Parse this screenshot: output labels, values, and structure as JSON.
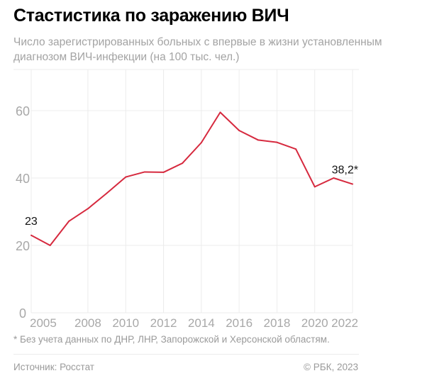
{
  "title": "Стастистика по заражению ВИЧ",
  "subtitle": "Число зарегистрированных больных с впервые в жизни установленным диагнозом ВИЧ-инфекции (на 100 тыс. чел.)",
  "footnote": "* Без учета данных по ДНР, ЛНР, Запорожской и Херсонской областям.",
  "source": "Источник: Росстат",
  "copyright": "© РБК, 2023",
  "chart_data": {
    "type": "line",
    "title": "Стастистика по заражению ВИЧ",
    "xlabel": "",
    "ylabel": "",
    "x": [
      2005,
      2006,
      2007,
      2008,
      2009,
      2010,
      2011,
      2012,
      2013,
      2014,
      2015,
      2016,
      2017,
      2018,
      2019,
      2020,
      2021,
      2022
    ],
    "series": [
      {
        "values": [
          23,
          20,
          27.2,
          30.9,
          35.5,
          40.3,
          41.8,
          41.7,
          44.4,
          50.5,
          59.5,
          54.1,
          51.3,
          50.6,
          48.6,
          37.4,
          40,
          38.2
        ],
        "color": "#d6293e"
      }
    ],
    "xticks": [
      "2005",
      "2008",
      "2010",
      "2012",
      "2014",
      "2016",
      "2018",
      "2020",
      "2022"
    ],
    "yticks": [
      "0",
      "20",
      "40",
      "60"
    ],
    "xlim": [
      2005,
      2022
    ],
    "ylim": [
      0,
      60
    ],
    "grid": true,
    "annotations": [
      {
        "x": 2005,
        "text": "23"
      },
      {
        "x": 2022,
        "text": "38,2*"
      }
    ]
  }
}
